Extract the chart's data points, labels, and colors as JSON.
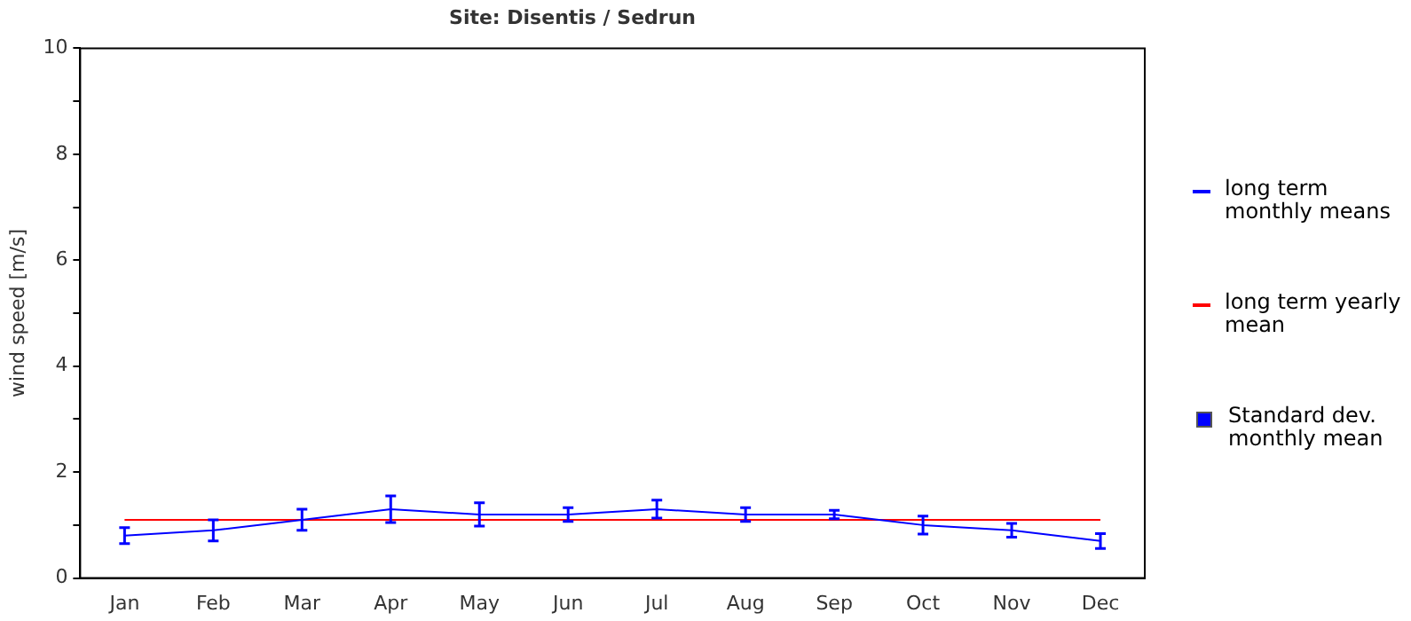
{
  "chart_data": {
    "type": "line",
    "title": "Site: Disentis / Sedrun",
    "ylabel": "wind speed [m/s]",
    "categories": [
      "Jan",
      "Feb",
      "Mar",
      "Apr",
      "May",
      "Jun",
      "Jul",
      "Aug",
      "Sep",
      "Oct",
      "Nov",
      "Dec"
    ],
    "series": [
      {
        "name": "long term monthly means",
        "color": "#0000ff",
        "values": [
          0.8,
          0.9,
          1.1,
          1.3,
          1.2,
          1.2,
          1.3,
          1.2,
          1.2,
          1.0,
          0.9,
          0.7
        ],
        "errors": [
          0.15,
          0.2,
          0.2,
          0.25,
          0.22,
          0.13,
          0.17,
          0.13,
          0.08,
          0.17,
          0.13,
          0.14
        ]
      },
      {
        "name": "long term yearly mean",
        "color": "#ff0000",
        "values": [
          1.1,
          1.1,
          1.1,
          1.1,
          1.1,
          1.1,
          1.1,
          1.1,
          1.1,
          1.1,
          1.1,
          1.1
        ]
      }
    ],
    "annotations": [
      "Standard dev. monthly mean"
    ],
    "ylim": [
      0,
      10
    ],
    "yticks": [
      0,
      {
        "value": 1,
        "label": null
      },
      2,
      {
        "value": 3,
        "label": null
      },
      4,
      {
        "value": 5,
        "label": null
      },
      6,
      {
        "value": 7,
        "label": null
      },
      8,
      {
        "value": 9,
        "label": null
      },
      10
    ],
    "grid": false,
    "legend": "right",
    "line_style": "solid"
  }
}
